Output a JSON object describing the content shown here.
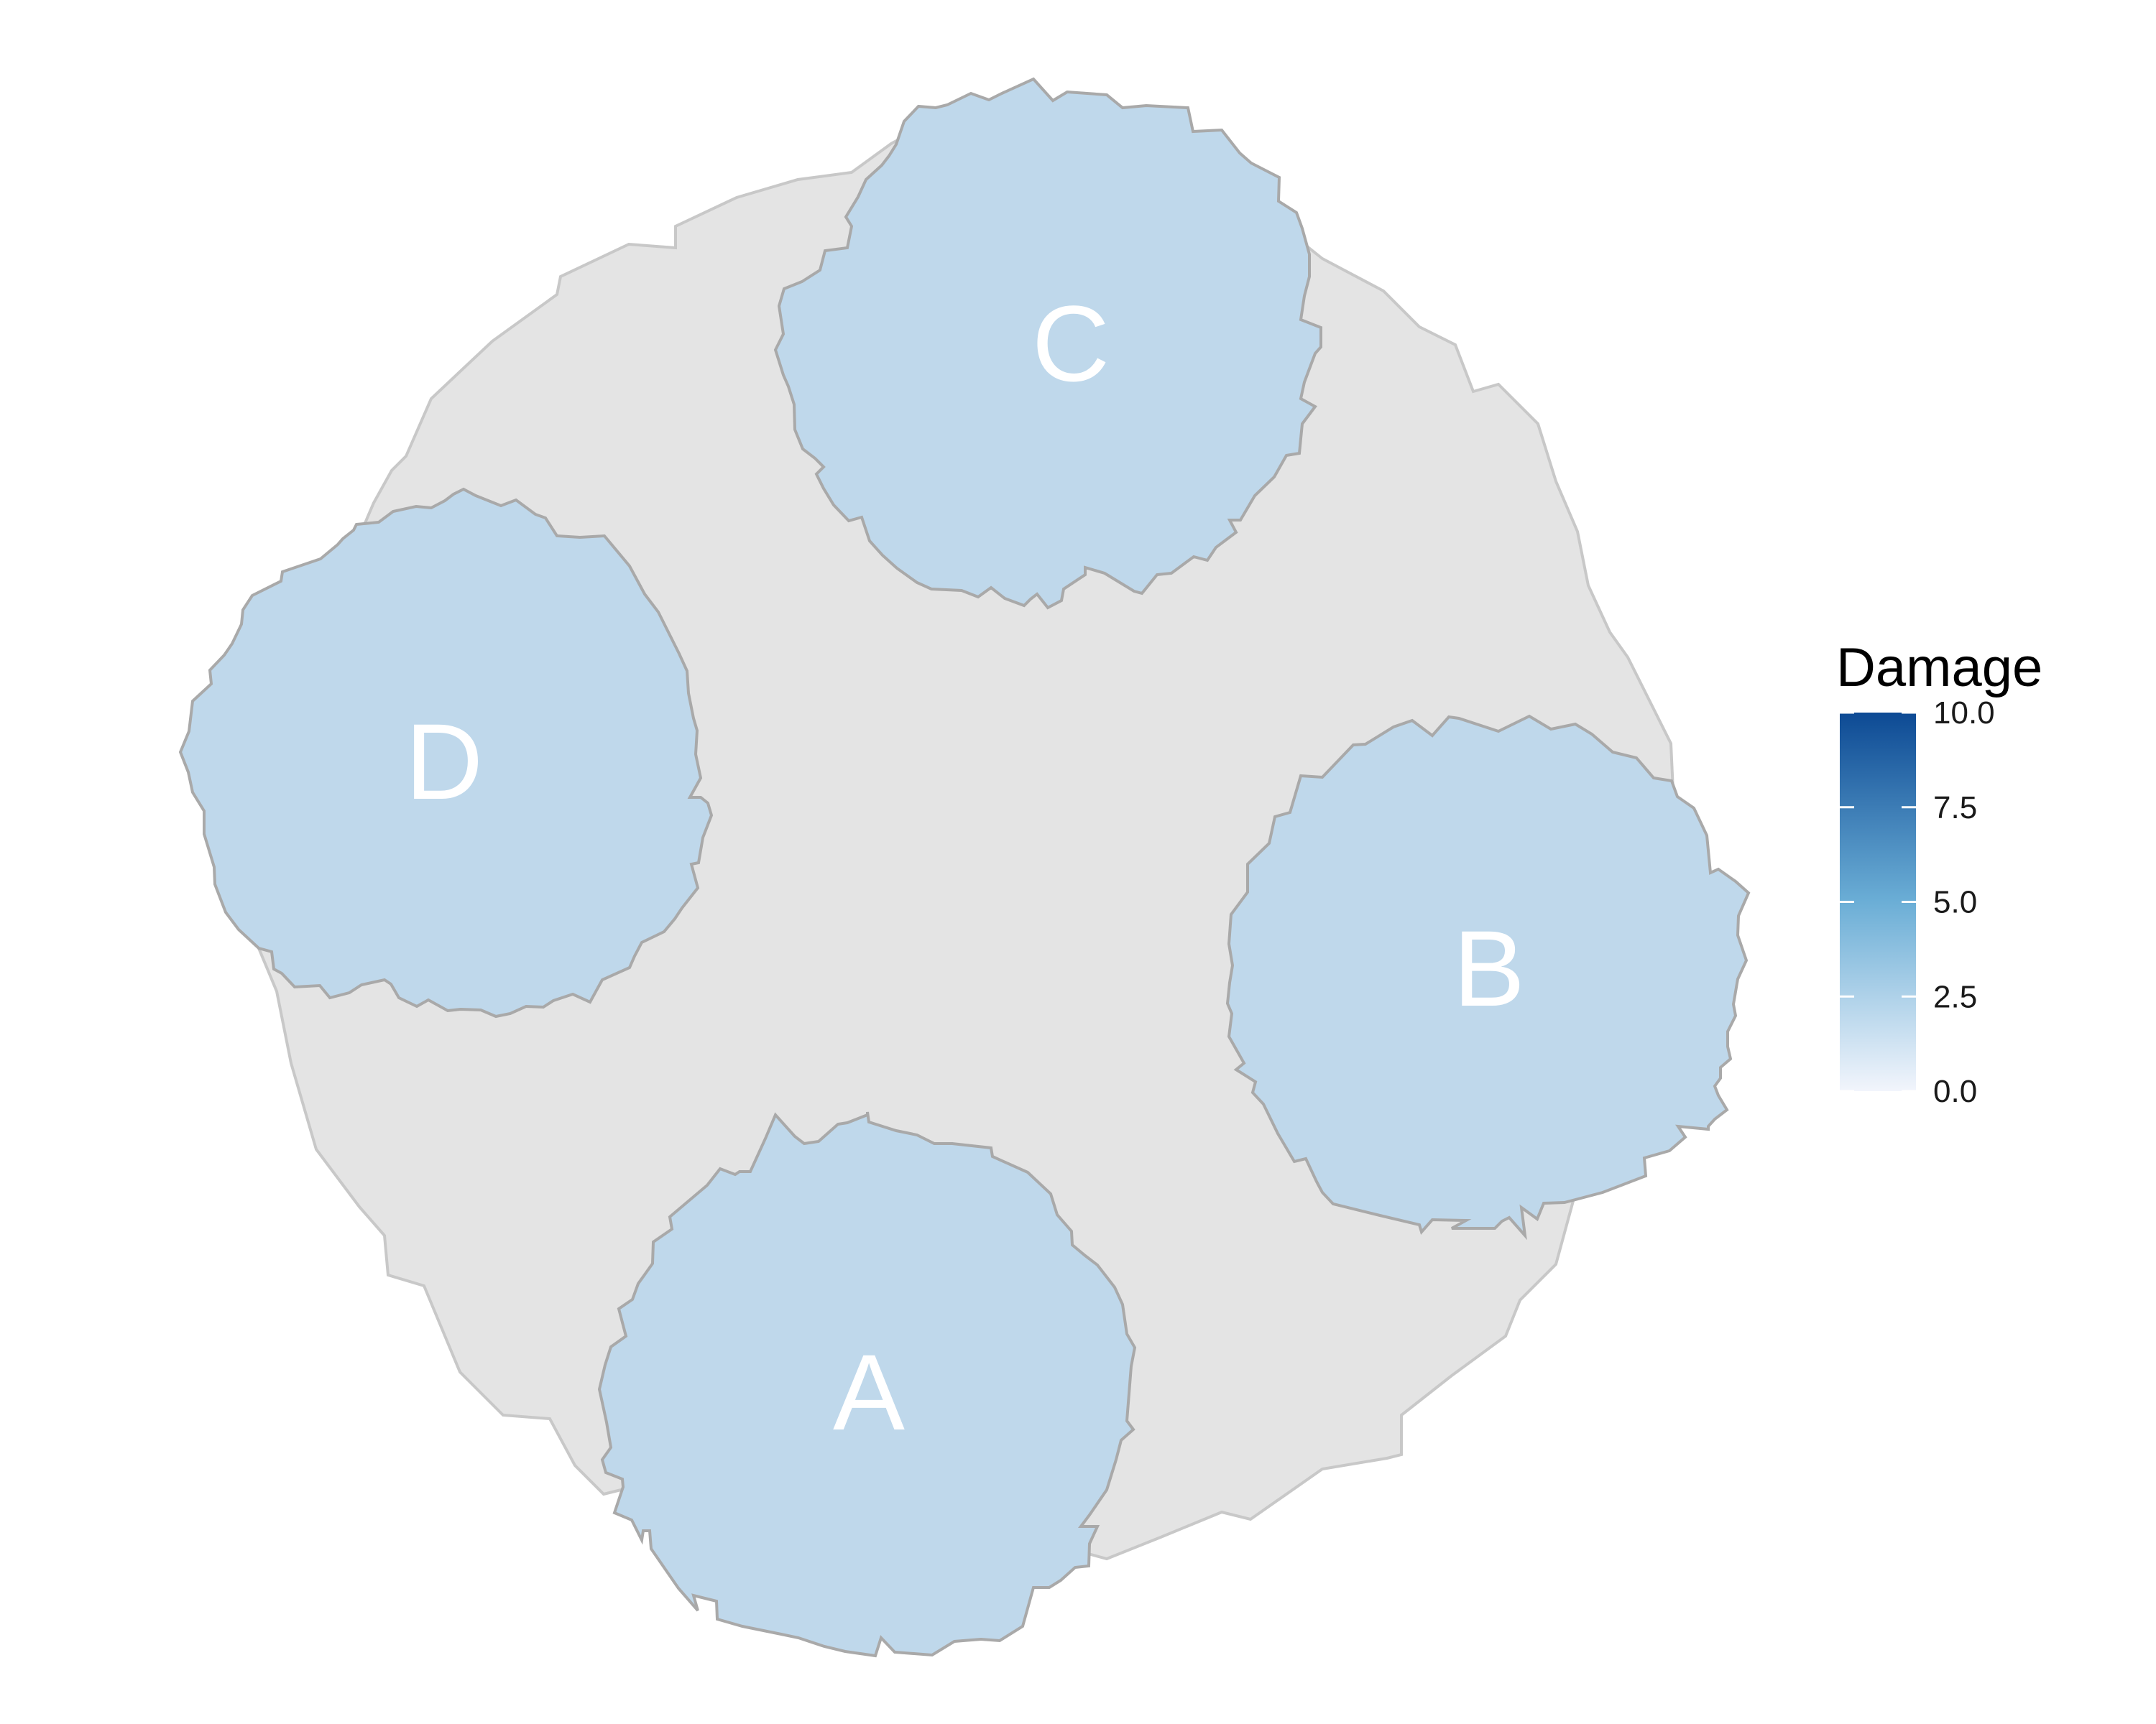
{
  "diagram": {
    "background_blob": {
      "fill": "#e4e4e4",
      "stroke": "#c8c8c8"
    },
    "region_style": {
      "fill": "#bfd8eb",
      "stroke": "#a9a9a9"
    },
    "regions": [
      {
        "id": "A",
        "label": "A",
        "damage": 2.5
      },
      {
        "id": "B",
        "label": "B",
        "damage": 2.5
      },
      {
        "id": "C",
        "label": "C",
        "damage": 2.5
      },
      {
        "id": "D",
        "label": "D",
        "damage": 2.5
      }
    ]
  },
  "legend": {
    "title": "Damage",
    "min": 0.0,
    "max": 10.0,
    "ticks": [
      "10.0",
      "7.5",
      "5.0",
      "2.5",
      "0.0"
    ],
    "color_low": "#f2f5fc",
    "color_mid": "#6baed6",
    "color_high": "#0d4a94"
  }
}
